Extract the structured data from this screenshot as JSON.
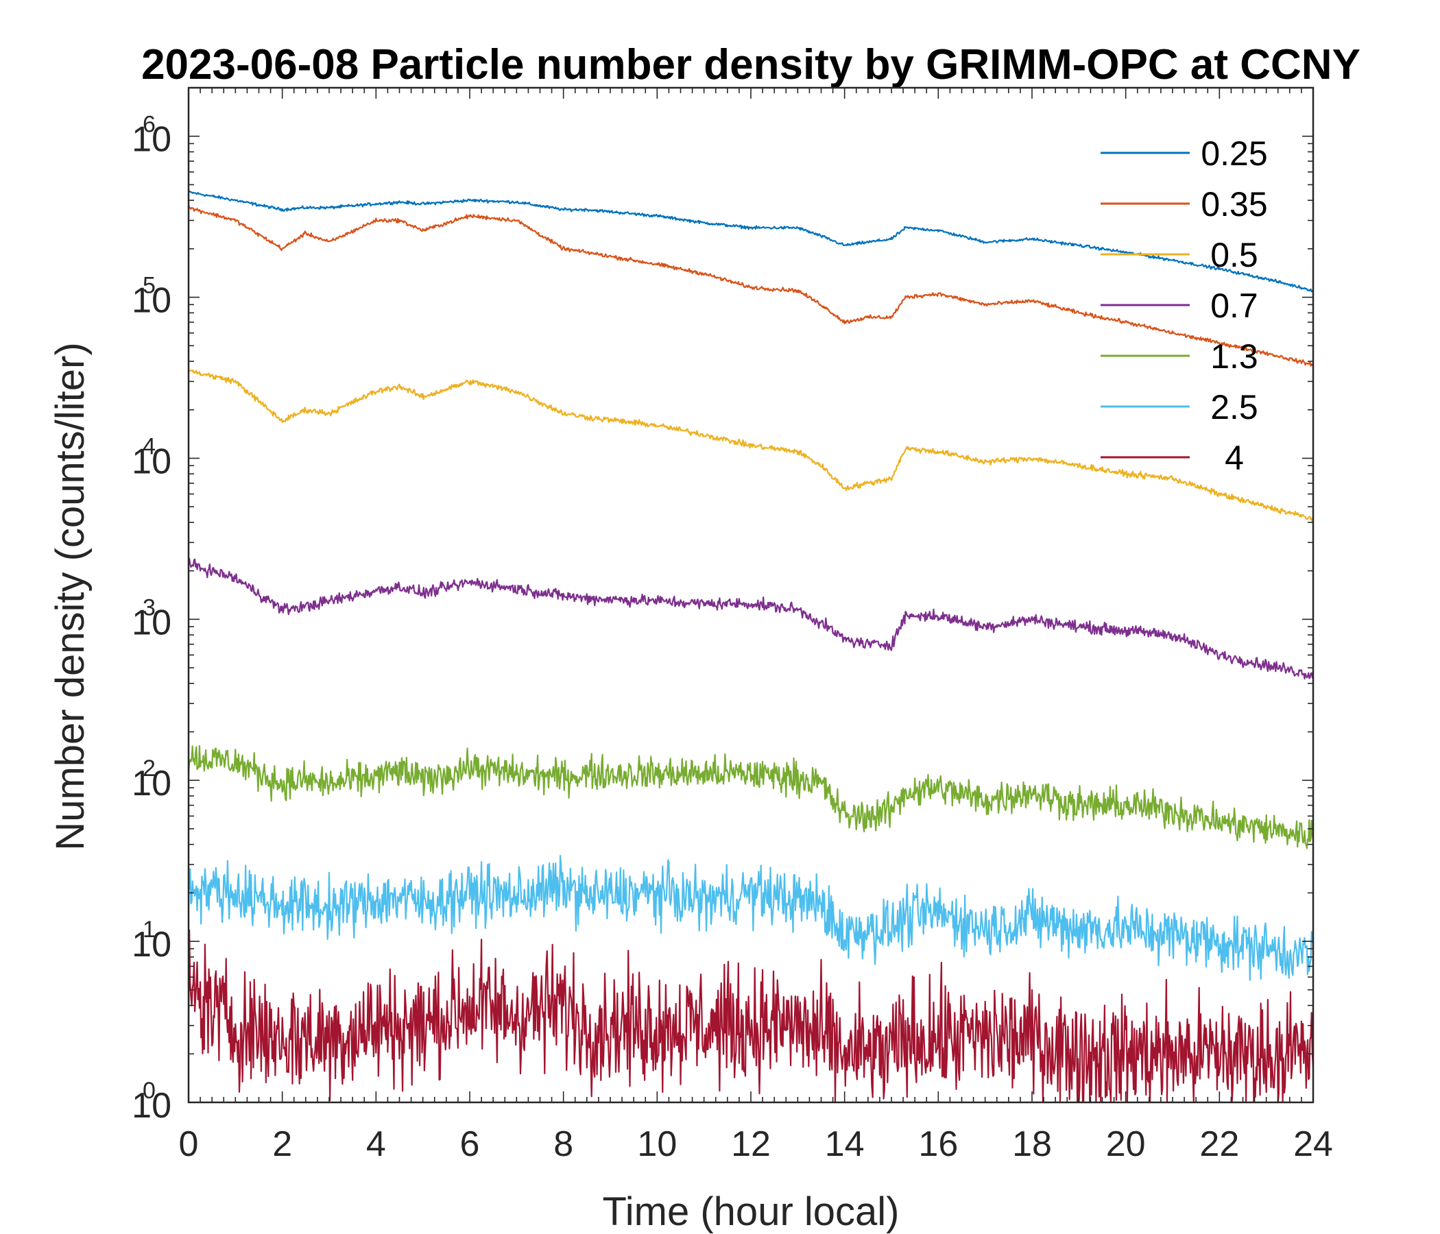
{
  "chart_data": {
    "type": "line",
    "title": "2023-06-08 Particle number density by GRIMM-OPC at CCNY",
    "xlabel": "Time (hour local)",
    "ylabel": "Number density (counts/liter)",
    "xlim": [
      0,
      24
    ],
    "ylim": [
      1,
      2000000
    ],
    "yscale": "log",
    "x_ticks": [
      0,
      2,
      4,
      6,
      8,
      10,
      12,
      14,
      16,
      18,
      20,
      22,
      24
    ],
    "y_ticks": [
      {
        "value": 1,
        "base": "10",
        "exp": "0"
      },
      {
        "value": 10,
        "base": "10",
        "exp": "1"
      },
      {
        "value": 100,
        "base": "10",
        "exp": "2"
      },
      {
        "value": 1000,
        "base": "10",
        "exp": "3"
      },
      {
        "value": 10000,
        "base": "10",
        "exp": "4"
      },
      {
        "value": 100000,
        "base": "10",
        "exp": "5"
      },
      {
        "value": 1000000,
        "base": "10",
        "exp": "6"
      }
    ],
    "legend_position": "top-right",
    "x": [
      0,
      1,
      2,
      2.5,
      3,
      4,
      4.5,
      5,
      6,
      7,
      8,
      8.5,
      10,
      11,
      12,
      13,
      13.5,
      14,
      14.5,
      15,
      15.3,
      16,
      17,
      18,
      19,
      20,
      21,
      22,
      23,
      24
    ],
    "series": [
      {
        "name": "0.25",
        "color": "#0072BD",
        "noise": 0.03,
        "values": [
          450000,
          400000,
          350000,
          360000,
          360000,
          380000,
          390000,
          380000,
          400000,
          390000,
          350000,
          350000,
          320000,
          290000,
          270000,
          270000,
          240000,
          210000,
          220000,
          230000,
          270000,
          260000,
          220000,
          230000,
          210000,
          190000,
          170000,
          150000,
          130000,
          110000
        ]
      },
      {
        "name": "0.35",
        "color": "#D95319",
        "noise": 0.04,
        "values": [
          360000,
          300000,
          200000,
          250000,
          220000,
          300000,
          300000,
          260000,
          320000,
          300000,
          200000,
          190000,
          160000,
          140000,
          115000,
          110000,
          90000,
          70000,
          75000,
          75000,
          100000,
          105000,
          90000,
          95000,
          80000,
          70000,
          60000,
          52000,
          45000,
          38000
        ]
      },
      {
        "name": "0.5",
        "color": "#EDB120",
        "noise": 0.06,
        "values": [
          35000,
          30000,
          17000,
          20000,
          19000,
          26000,
          28000,
          24000,
          30000,
          26000,
          19000,
          18000,
          16000,
          14000,
          12000,
          11000,
          9000,
          6500,
          7000,
          7500,
          11500,
          11000,
          9500,
          10000,
          9000,
          8000,
          7500,
          6000,
          5000,
          4200
        ]
      },
      {
        "name": "0.7",
        "color": "#7E2F8E",
        "noise": 0.12,
        "values": [
          2200,
          1800,
          1150,
          1200,
          1300,
          1500,
          1600,
          1450,
          1700,
          1550,
          1400,
          1350,
          1300,
          1250,
          1250,
          1150,
          950,
          750,
          700,
          700,
          1050,
          1050,
          900,
          1000,
          900,
          850,
          800,
          600,
          520,
          450
        ]
      },
      {
        "name": "1.3",
        "color": "#77AC30",
        "noise": 0.35,
        "values": [
          140,
          130,
          95,
          100,
          95,
          105,
          115,
          100,
          120,
          110,
          105,
          110,
          110,
          110,
          110,
          105,
          95,
          60,
          60,
          65,
          85,
          90,
          75,
          85,
          70,
          70,
          65,
          55,
          50,
          45
        ]
      },
      {
        "name": "2.5",
        "color": "#4DBEEE",
        "noise": 0.6,
        "values": [
          22,
          20,
          17,
          17,
          16,
          18,
          19,
          17,
          20,
          19,
          22,
          19,
          20,
          18,
          20,
          18,
          17,
          11,
          12,
          12,
          14,
          15,
          12,
          14,
          12,
          12,
          11,
          10,
          9,
          8
        ]
      },
      {
        "name": "4",
        "color": "#A2142F",
        "noise": 1.2,
        "values": [
          5,
          3,
          2.5,
          2.5,
          2.5,
          3,
          3,
          3,
          4,
          3.5,
          4,
          3,
          3,
          3,
          3,
          3,
          2.5,
          2,
          2,
          2,
          2.5,
          2.5,
          2.5,
          2.5,
          2,
          2,
          2,
          2,
          2,
          2
        ]
      }
    ]
  }
}
